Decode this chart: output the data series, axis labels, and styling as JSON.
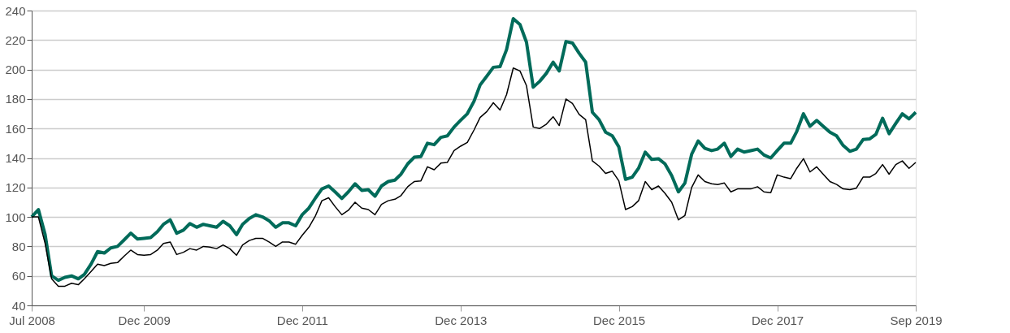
{
  "chart_data": {
    "type": "line",
    "x": [
      "2008-07",
      "2008-08",
      "2008-09",
      "2008-10",
      "2008-11",
      "2008-12",
      "2009-01",
      "2009-02",
      "2009-03",
      "2009-04",
      "2009-05",
      "2009-06",
      "2009-07",
      "2009-08",
      "2009-09",
      "2009-10",
      "2009-11",
      "2009-12",
      "2010-01",
      "2010-02",
      "2010-03",
      "2010-04",
      "2010-05",
      "2010-06",
      "2010-07",
      "2010-08",
      "2010-09",
      "2010-10",
      "2010-11",
      "2010-12",
      "2011-01",
      "2011-02",
      "2011-03",
      "2011-04",
      "2011-05",
      "2011-06",
      "2011-07",
      "2011-08",
      "2011-09",
      "2011-10",
      "2011-11",
      "2011-12",
      "2012-01",
      "2012-02",
      "2012-03",
      "2012-04",
      "2012-05",
      "2012-06",
      "2012-07",
      "2012-08",
      "2012-09",
      "2012-10",
      "2012-11",
      "2012-12",
      "2013-01",
      "2013-02",
      "2013-03",
      "2013-04",
      "2013-05",
      "2013-06",
      "2013-07",
      "2013-08",
      "2013-09",
      "2013-10",
      "2013-11",
      "2013-12",
      "2014-01",
      "2014-02",
      "2014-03",
      "2014-04",
      "2014-05",
      "2014-06",
      "2014-07",
      "2014-08",
      "2014-09",
      "2014-10",
      "2014-11",
      "2014-12",
      "2015-01",
      "2015-02",
      "2015-03",
      "2015-04",
      "2015-05",
      "2015-06",
      "2015-07",
      "2015-08",
      "2015-09",
      "2015-10",
      "2015-11",
      "2015-12",
      "2016-01",
      "2016-02",
      "2016-03",
      "2016-04",
      "2016-05",
      "2016-06",
      "2016-07",
      "2016-08",
      "2016-09",
      "2016-10",
      "2016-11",
      "2016-12",
      "2017-01",
      "2017-02",
      "2017-03",
      "2017-04",
      "2017-05",
      "2017-06",
      "2017-07",
      "2017-08",
      "2017-09",
      "2017-10",
      "2017-11",
      "2017-12",
      "2018-01",
      "2018-02",
      "2018-03",
      "2018-04",
      "2018-05",
      "2018-06",
      "2018-07",
      "2018-08",
      "2018-09",
      "2018-10",
      "2018-11",
      "2018-12",
      "2019-01",
      "2019-02",
      "2019-03",
      "2019-04",
      "2019-05",
      "2019-06",
      "2019-07",
      "2019-08",
      "2019-09"
    ],
    "series": [
      {
        "color": "#006b5a",
        "values": [
          100,
          105,
          88,
          60,
          57,
          59,
          60,
          58,
          61,
          68,
          76.5,
          75.5,
          79,
          80,
          84.5,
          89,
          85,
          85.5,
          86,
          90,
          95,
          98,
          89,
          91,
          95.5,
          93,
          95,
          94,
          93,
          97,
          94,
          88,
          95,
          99,
          101.5,
          100,
          97.5,
          93,
          96,
          96,
          94,
          101.5,
          106,
          113,
          119,
          121,
          117,
          112.5,
          117,
          122.5,
          118,
          118.5,
          114,
          121,
          124,
          125,
          129,
          136,
          140.5,
          141,
          150,
          149,
          154,
          155,
          161,
          165.5,
          170,
          178.5,
          189.5,
          195.5,
          201.5,
          202,
          213.5,
          234.5,
          230.5,
          218.5,
          188,
          192,
          197.5,
          205,
          199,
          219,
          218,
          211,
          205,
          171,
          166,
          157.5,
          155,
          147.5,
          125.5,
          127,
          133,
          144,
          139,
          139.5,
          136,
          128,
          117,
          123,
          142.5,
          151.5,
          146.5,
          145,
          146,
          150,
          141,
          146,
          144,
          145,
          146,
          142,
          140,
          145,
          150,
          150,
          158,
          170,
          161.5,
          165.5,
          161.5,
          157.5,
          155,
          148.5,
          144.5,
          146,
          152.5,
          153,
          156,
          167,
          156.5,
          163.5,
          170,
          166.5,
          171
        ]
      },
      {
        "color": "#000000",
        "values": [
          100,
          100,
          82,
          58,
          53,
          53,
          55,
          54,
          58,
          63,
          68,
          67,
          68.5,
          69,
          73.5,
          77.5,
          74.5,
          74,
          74.5,
          77.5,
          82,
          83,
          74.5,
          76,
          78.5,
          77.5,
          80,
          79.5,
          78.5,
          81,
          78.5,
          74,
          81,
          84,
          85.5,
          85.5,
          83,
          80,
          83,
          83,
          81.5,
          87.5,
          93,
          101,
          111,
          113,
          107,
          101.5,
          104.5,
          110,
          106,
          105,
          101.5,
          108.5,
          111,
          112,
          114.5,
          120.5,
          124,
          124.5,
          134,
          132,
          136.5,
          137,
          145,
          148,
          150.5,
          159,
          167.5,
          171.5,
          177.5,
          172.5,
          183,
          201,
          199,
          189,
          161,
          160,
          163,
          168,
          162,
          180,
          177,
          169.5,
          166,
          138,
          134.5,
          129.5,
          131,
          124.5,
          105,
          107,
          111,
          124,
          118.5,
          121,
          116,
          110,
          98,
          101,
          120,
          128.5,
          124,
          122.5,
          122,
          123,
          117,
          119,
          119,
          119,
          120.5,
          117,
          116.5,
          128.5,
          127,
          126,
          133,
          139.5,
          130.5,
          134,
          129,
          124,
          122,
          119,
          118.5,
          119.5,
          127,
          127,
          129.5,
          135.5,
          129,
          135.5,
          138,
          133,
          137
        ]
      }
    ],
    "xlim": [
      "2008-07",
      "2019-09"
    ],
    "xticks": [
      {
        "value": "2008-07",
        "label": "Jul 2008"
      },
      {
        "value": "2009-12",
        "label": "Dec 2009"
      },
      {
        "value": "2011-12",
        "label": "Dec 2011"
      },
      {
        "value": "2013-12",
        "label": "Dec 2013"
      },
      {
        "value": "2015-12",
        "label": "Dec 2015"
      },
      {
        "value": "2017-12",
        "label": "Dec 2017"
      },
      {
        "value": "2019-09",
        "label": "Sep 2019"
      }
    ],
    "ylim": [
      40,
      240
    ],
    "yticks": [
      40,
      60,
      80,
      100,
      120,
      140,
      160,
      180,
      200,
      220,
      240
    ],
    "grid": "y",
    "legend": false,
    "marker": "none",
    "line_style": "solid"
  }
}
